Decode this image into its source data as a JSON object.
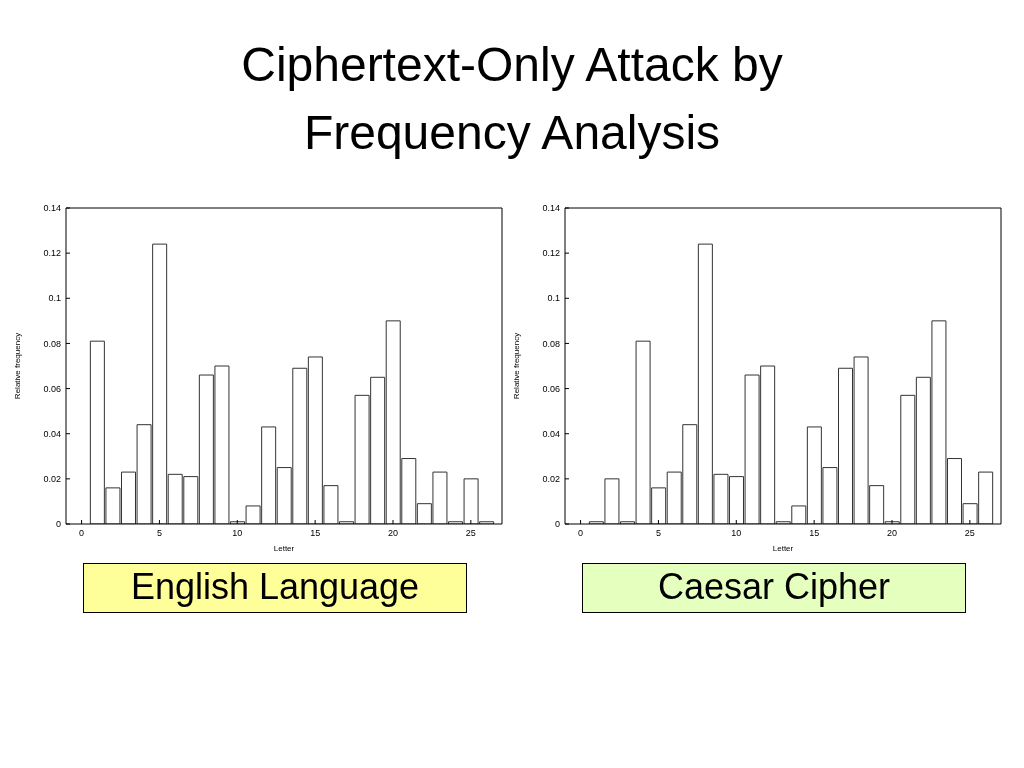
{
  "chart_data": [
    {
      "type": "bar",
      "title": "Ciphertext-Only Attack by Frequency Analysis",
      "xlabel": "Letter",
      "ylabel": "Relative frequency",
      "annotations": [
        "English Language"
      ],
      "x": [
        1,
        2,
        3,
        4,
        5,
        6,
        7,
        8,
        9,
        10,
        11,
        12,
        13,
        14,
        15,
        16,
        17,
        18,
        19,
        20,
        21,
        22,
        23,
        24,
        25,
        26
      ],
      "values": [
        0.081,
        0.016,
        0.023,
        0.044,
        0.124,
        0.022,
        0.021,
        0.066,
        0.07,
        0.001,
        0.008,
        0.043,
        0.025,
        0.069,
        0.074,
        0.017,
        0.001,
        0.057,
        0.065,
        0.09,
        0.029,
        0.009,
        0.023,
        0.001,
        0.02,
        0.001
      ],
      "color": "#ffffff",
      "xlim": [
        -1,
        27
      ],
      "xticks": [
        0,
        5,
        10,
        15,
        20,
        25
      ],
      "ylim": [
        0,
        0.14
      ],
      "yticks": [
        0,
        0.02,
        0.04,
        0.06,
        0.08,
        0.1,
        0.12,
        0.14
      ]
    },
    {
      "type": "bar",
      "xlabel": "Letter",
      "ylabel": "Relative frequency",
      "annotations": [
        "Caesar Cipher"
      ],
      "x": [
        1,
        2,
        3,
        4,
        5,
        6,
        7,
        8,
        9,
        10,
        11,
        12,
        13,
        14,
        15,
        16,
        17,
        18,
        19,
        20,
        21,
        22,
        23,
        24,
        25,
        26
      ],
      "values": [
        0.001,
        0.02,
        0.001,
        0.081,
        0.016,
        0.023,
        0.044,
        0.124,
        0.022,
        0.021,
        0.066,
        0.07,
        0.001,
        0.008,
        0.043,
        0.025,
        0.069,
        0.074,
        0.017,
        0.001,
        0.057,
        0.065,
        0.09,
        0.029,
        0.009,
        0.023
      ],
      "color": "#ffffff",
      "xlim": [
        -1,
        27
      ],
      "xticks": [
        0,
        5,
        10,
        15,
        20,
        25
      ],
      "ylim": [
        0,
        0.14
      ],
      "yticks": [
        0,
        0.02,
        0.04,
        0.06,
        0.08,
        0.1,
        0.12,
        0.14
      ]
    }
  ]
}
